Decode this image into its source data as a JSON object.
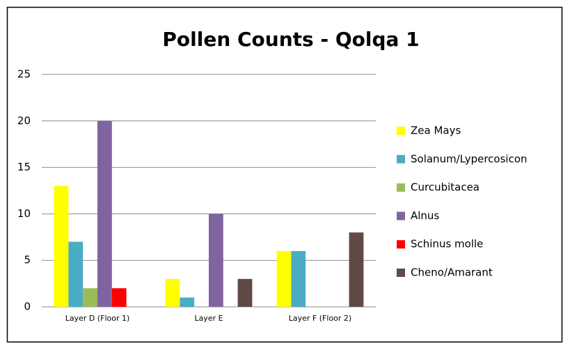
{
  "chart_data": {
    "type": "bar",
    "title": "Pollen Counts - Qolqa 1",
    "categories": [
      "Layer D (Floor 1)",
      "Layer E",
      "Layer F (Floor 2)"
    ],
    "series": [
      {
        "name": "Zea Mays",
        "color": "#ffff00",
        "values": [
          13,
          3,
          6
        ]
      },
      {
        "name": "Solanum/Lypercosicon",
        "color": "#4bacc6",
        "values": [
          7,
          1,
          6
        ]
      },
      {
        "name": "Curcubitacea",
        "color": "#9bbb59",
        "values": [
          2,
          0,
          0
        ]
      },
      {
        "name": "Alnus",
        "color": "#8064a2",
        "values": [
          20,
          10,
          0
        ]
      },
      {
        "name": "Schinus molle",
        "color": "#ff0000",
        "values": [
          2,
          0,
          0
        ]
      },
      {
        "name": "Cheno/Amarant",
        "color": "#604a46",
        "values": [
          0,
          3,
          8
        ]
      }
    ],
    "ylim": [
      0,
      25
    ],
    "yticks": [
      0,
      5,
      10,
      15,
      20,
      25
    ],
    "grid": true,
    "legend": "right"
  }
}
